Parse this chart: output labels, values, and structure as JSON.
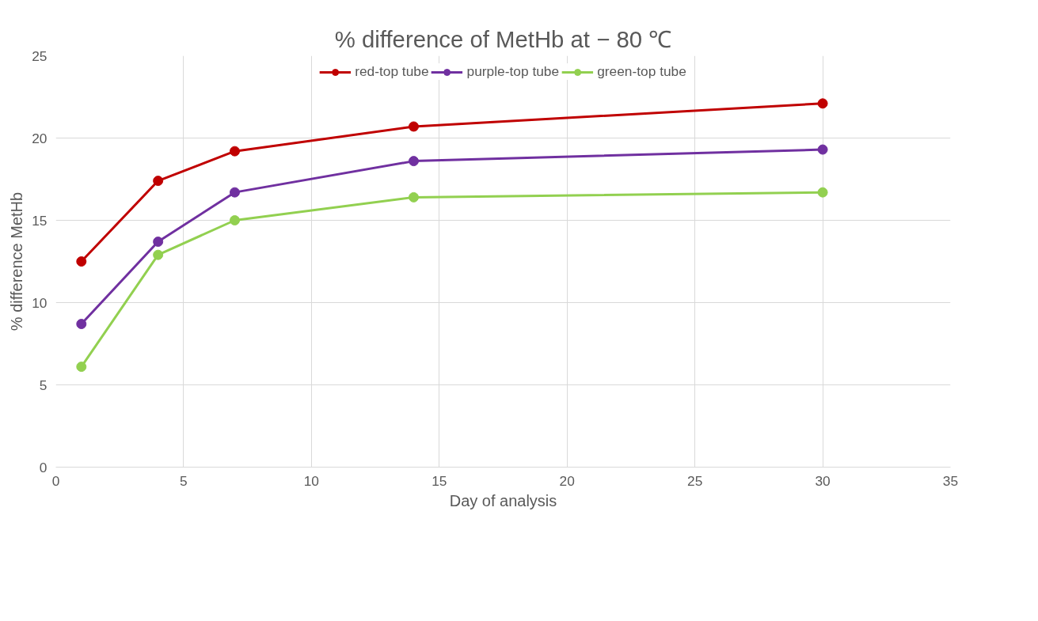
{
  "chart_data": {
    "type": "line",
    "title": "% difference of MetHb at − 80 ℃",
    "xlabel": "Day of analysis",
    "ylabel": "% difference MetHb",
    "x": [
      1,
      4,
      7,
      14,
      30
    ],
    "series": [
      {
        "name": "red-top tube",
        "color": "#c00000",
        "values": [
          12.5,
          17.4,
          19.2,
          20.7,
          22.1
        ]
      },
      {
        "name": "purple-top tube",
        "color": "#7030a0",
        "values": [
          8.7,
          13.7,
          16.7,
          18.6,
          19.3
        ]
      },
      {
        "name": "green-top tube",
        "color": "#92d050",
        "values": [
          6.1,
          12.9,
          15.0,
          16.4,
          16.7
        ]
      }
    ],
    "xlim": [
      0,
      35
    ],
    "xticks": [
      0,
      5,
      10,
      15,
      20,
      25,
      30,
      35
    ],
    "ylim": [
      0,
      25
    ],
    "yticks": [
      0,
      5,
      10,
      15,
      20,
      25
    ],
    "grid": true,
    "legend": "top",
    "marker": "circle",
    "line_style": "solid"
  }
}
